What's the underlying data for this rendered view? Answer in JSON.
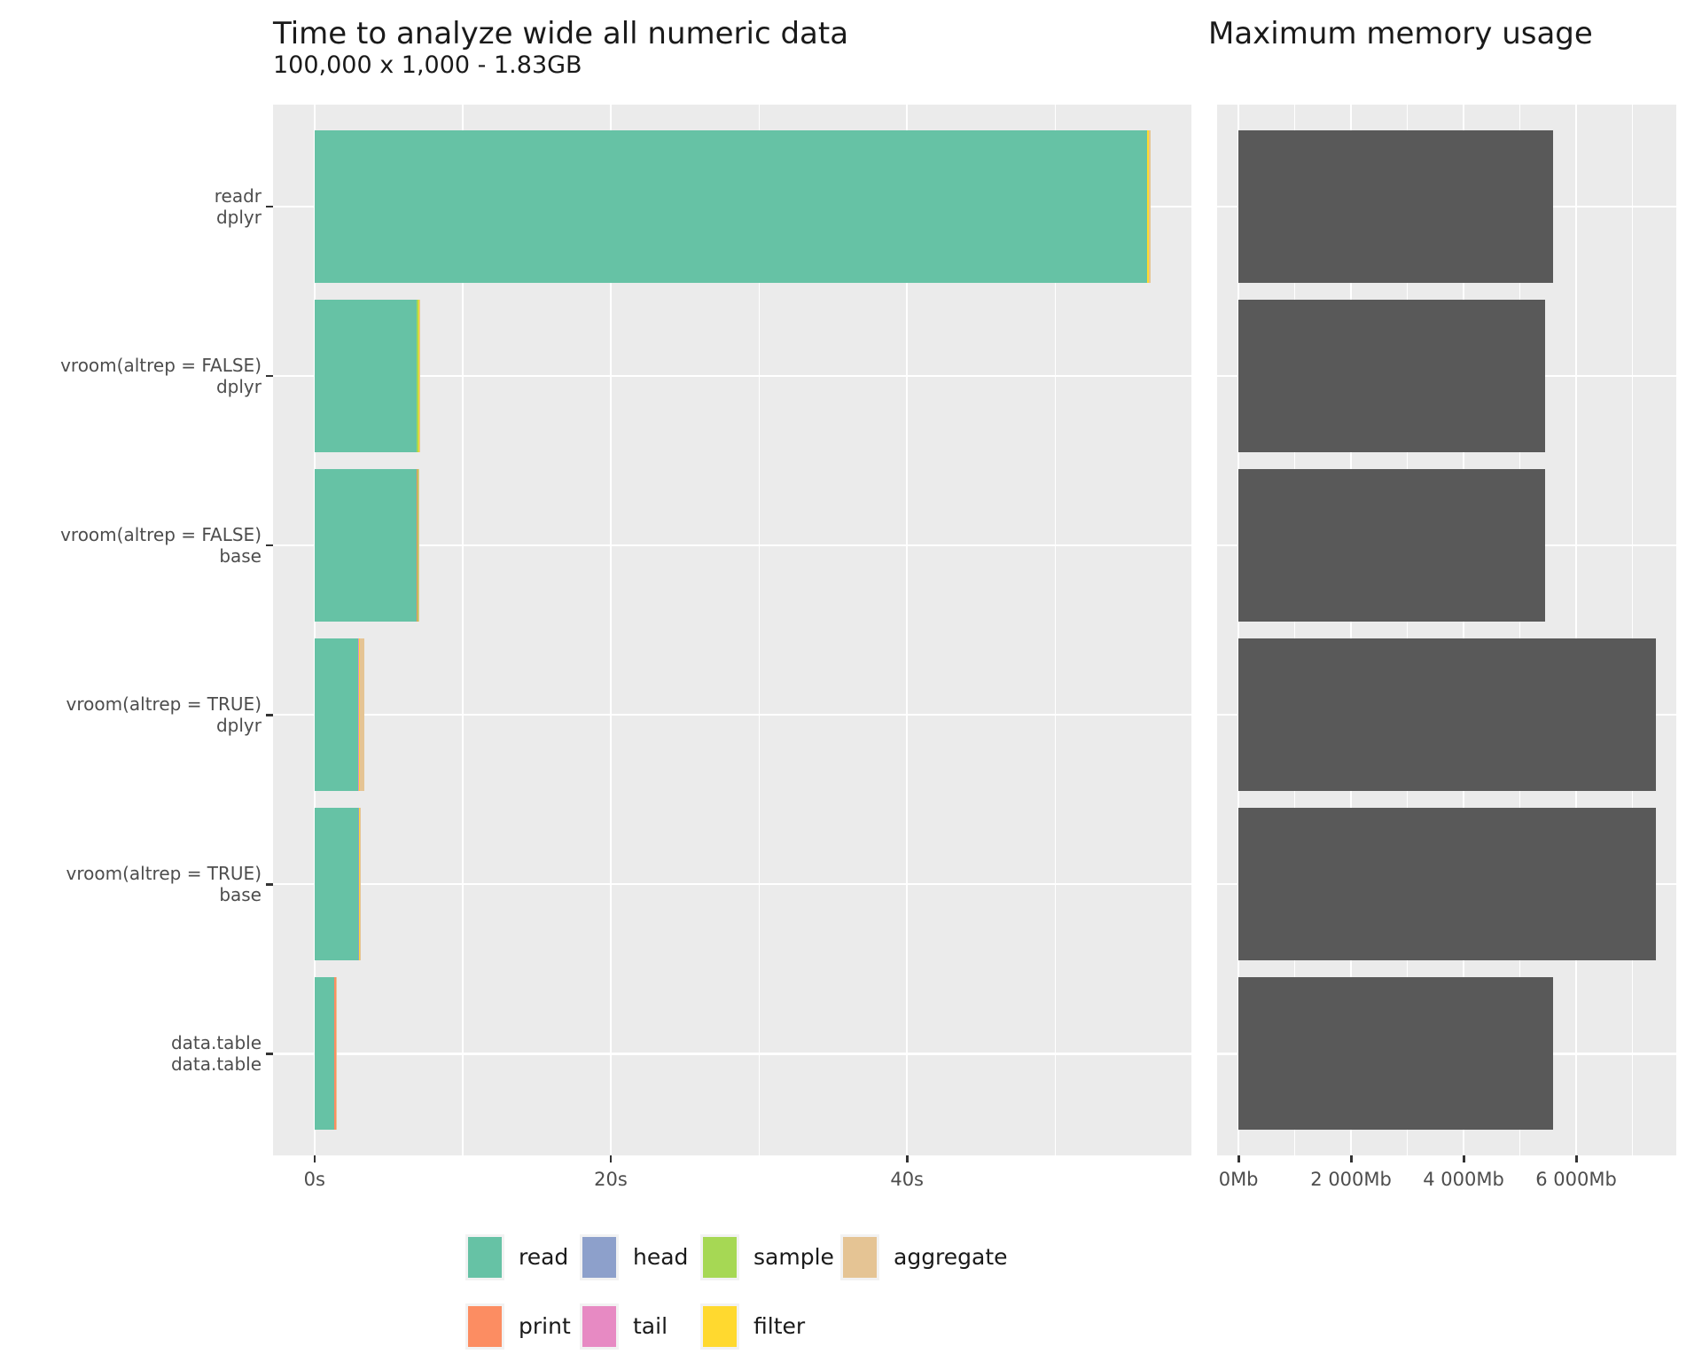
{
  "chart_data": [
    {
      "type": "bar",
      "orientation": "horizontal",
      "stacked": true,
      "title": "Time to analyze wide all numeric data",
      "subtitle": "100,000 x 1,000 - 1.83GB",
      "categories": [
        "readr\ndplyr",
        "vroom(altrep = FALSE)\ndplyr",
        "vroom(altrep = FALSE)\nbase",
        "vroom(altrep = TRUE)\ndplyr",
        "vroom(altrep = TRUE)\nbase",
        "data.table\ndata.table"
      ],
      "series": [
        {
          "name": "read",
          "color": "#66C2A5",
          "values": [
            56.2,
            6.9,
            6.9,
            2.93,
            2.93,
            1.32
          ]
        },
        {
          "name": "print",
          "color": "#FC8D62",
          "values": [
            0.01,
            0.01,
            0.03,
            0.03,
            0.04,
            0.11
          ]
        },
        {
          "name": "head",
          "color": "#8DA0CB",
          "values": [
            0.005,
            0.005,
            0.04,
            0.01,
            0.01,
            0.003
          ]
        },
        {
          "name": "tail",
          "color": "#E78AC3",
          "values": [
            0.005,
            0.005,
            0.01,
            0.03,
            0.01,
            0.003
          ]
        },
        {
          "name": "sample",
          "color": "#A6D854",
          "values": [
            0.01,
            0.08,
            0.01,
            0.02,
            0.04,
            0.005
          ]
        },
        {
          "name": "filter",
          "color": "#FFD92F",
          "values": [
            0.12,
            0.06,
            0.01,
            0.02,
            0.02,
            0.005
          ]
        },
        {
          "name": "aggregate",
          "color": "#E5C494",
          "values": [
            0.1,
            0.02,
            0.01,
            0.31,
            0.01,
            0.01
          ]
        }
      ],
      "xlabel": "",
      "ylabel": "",
      "xlim": [
        -2.8,
        59.2
      ],
      "x_ticks": [
        {
          "value": 0,
          "label": "0s"
        },
        {
          "value": 20,
          "label": "20s"
        },
        {
          "value": 40,
          "label": "40s"
        }
      ],
      "x_minor_ticks": [
        10,
        30,
        50
      ],
      "grid": "white-on-gray",
      "legend_position": "bottom"
    },
    {
      "type": "bar",
      "orientation": "horizontal",
      "stacked": false,
      "title": "Maximum memory usage",
      "categories": [
        "readr\ndplyr",
        "vroom(altrep = FALSE)\ndplyr",
        "vroom(altrep = FALSE)\nbase",
        "vroom(altrep = TRUE)\ndplyr",
        "vroom(altrep = TRUE)\nbase",
        "data.table\ndata.table"
      ],
      "series": [
        {
          "name": "memory_mb",
          "color": "#595959",
          "values": [
            5590,
            5445,
            5445,
            7415,
            7415,
            5585
          ]
        }
      ],
      "xlabel": "",
      "ylabel": "",
      "xlim": [
        -380,
        7780
      ],
      "x_ticks": [
        {
          "value": 0,
          "label": "0Mb"
        },
        {
          "value": 2000,
          "label": "2 000Mb"
        },
        {
          "value": 4000,
          "label": "4 000Mb"
        },
        {
          "value": 6000,
          "label": "6 000Mb"
        }
      ],
      "x_minor_ticks": [
        1000,
        3000,
        5000,
        7000
      ],
      "grid": "white-on-gray",
      "legend_position": "none"
    }
  ],
  "legend": {
    "rows": [
      [
        {
          "label": "read",
          "color": "#66C2A5"
        },
        {
          "label": "head",
          "color": "#8DA0CB"
        },
        {
          "label": "sample",
          "color": "#A6D854"
        },
        {
          "label": "aggregate",
          "color": "#E5C494"
        }
      ],
      [
        {
          "label": "print",
          "color": "#FC8D62"
        },
        {
          "label": "tail",
          "color": "#E78AC3"
        },
        {
          "label": "filter",
          "color": "#FFD92F"
        }
      ]
    ]
  },
  "colors": {
    "panel_background": "#EBEBEB",
    "gridline": "#FFFFFF",
    "memory_bar": "#595959",
    "axis_text": "#4D4D4D",
    "title_text": "#1A1A1A"
  }
}
